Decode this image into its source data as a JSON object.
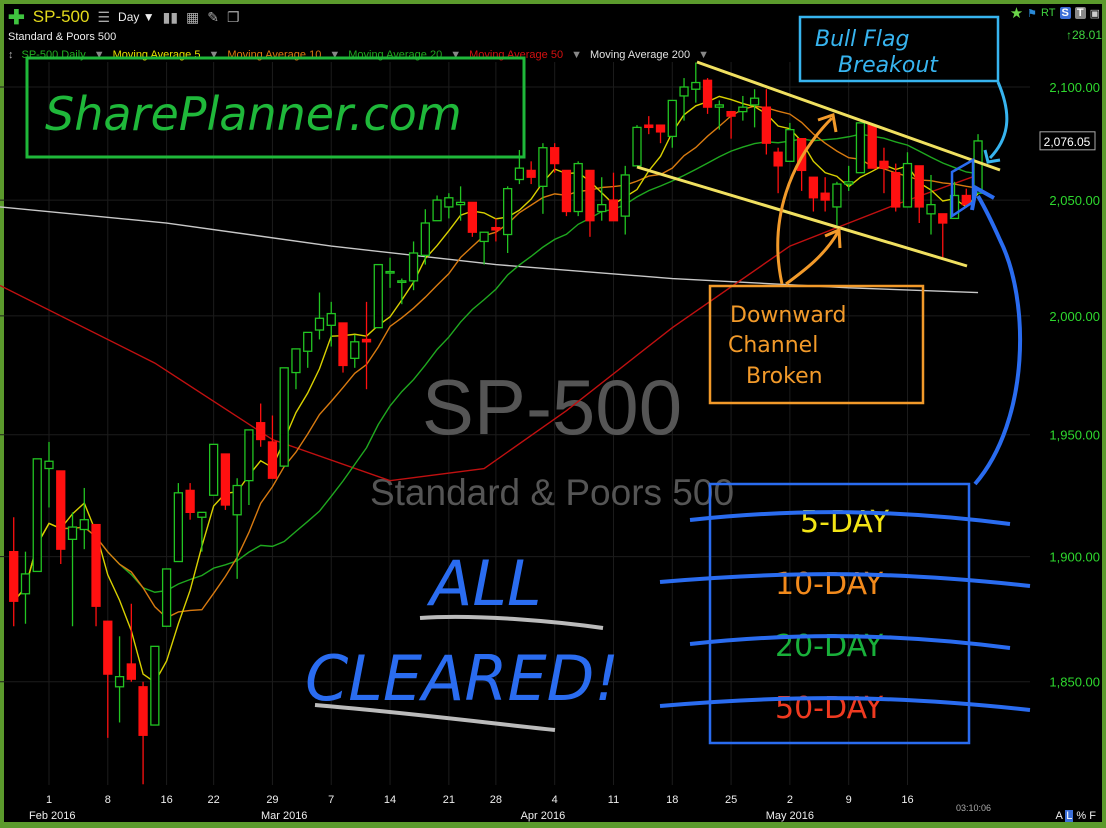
{
  "toolbar": {
    "symbol": "SP-500",
    "interval": "Day",
    "add_icon": "plus-icon",
    "list_icon": "list-icon",
    "dropdown_icon": "caret-down-icon",
    "right": {
      "rt": "RT",
      "s": "S",
      "t": "T"
    },
    "change": "↑28.01"
  },
  "subtitle": "Standard & Poors 500",
  "legend": [
    {
      "label": "SP-500 Daily",
      "color": "#22b022"
    },
    {
      "label": "Moving Average 5",
      "color": "#e8e000"
    },
    {
      "label": "Moving Average 10",
      "color": "#e07a10"
    },
    {
      "label": "Moving Average 20",
      "color": "#1fa81f"
    },
    {
      "label": "Moving Average 50",
      "color": "#d41010"
    },
    {
      "label": "Moving Average 200",
      "color": "#e0e0e0"
    }
  ],
  "watermark": {
    "symbol": "SP-500",
    "name": "Standard & Poors 500"
  },
  "last_price": "2,076.05",
  "timestamp": "03:10:06",
  "scale_modes": [
    "A",
    "L",
    "%",
    "F"
  ],
  "annotations": {
    "logo": "SharePlanner.com",
    "bull_flag": [
      "Bull Flag",
      "Breakout"
    ],
    "channel": [
      "Downward",
      "Channel",
      "Broken"
    ],
    "all_cleared": [
      "ALL",
      "CLEARED!"
    ],
    "ma_list": [
      {
        "text": "5-DAY",
        "color": "#f2e416"
      },
      {
        "text": "10-DAY",
        "color": "#f28a1c"
      },
      {
        "text": "20-DAY",
        "color": "#19b03a"
      },
      {
        "text": "50-DAY",
        "color": "#f03a20"
      }
    ],
    "box_colors": {
      "logo": "#1fb83a",
      "bull_flag": "#37b4ef",
      "channel": "#f29a2a",
      "ma": "#2a6cf0",
      "channel_lines": "#f0e060"
    }
  },
  "chart_data": {
    "type": "candlestick",
    "scale": "log",
    "ylim": [
      1805,
      2125
    ],
    "yticks": [
      2100,
      2050,
      2000,
      1950,
      1900,
      1850
    ],
    "ytick_labels": [
      "2,100.00",
      "2,050.00",
      "2,000.00",
      "1,950.00",
      "1,900.00",
      "1,850.00"
    ],
    "xticks": [
      {
        "date": "2016-02-01",
        "label": "1"
      },
      {
        "date": "2016-02-08",
        "label": "8"
      },
      {
        "date": "2016-02-16",
        "label": "16"
      },
      {
        "date": "2016-02-22",
        "label": "22"
      },
      {
        "date": "2016-02-29",
        "label": "29"
      },
      {
        "date": "2016-03-07",
        "label": "7"
      },
      {
        "date": "2016-03-14",
        "label": "14"
      },
      {
        "date": "2016-03-21",
        "label": "21"
      },
      {
        "date": "2016-03-28",
        "label": "28"
      },
      {
        "date": "2016-04-04",
        "label": "4"
      },
      {
        "date": "2016-04-11",
        "label": "11"
      },
      {
        "date": "2016-04-18",
        "label": "18"
      },
      {
        "date": "2016-04-25",
        "label": "25"
      },
      {
        "date": "2016-05-02",
        "label": "2"
      },
      {
        "date": "2016-05-09",
        "label": "9"
      },
      {
        "date": "2016-05-16",
        "label": "16"
      }
    ],
    "month_labels": [
      {
        "date": "2016-02-01",
        "label": "Feb 2016"
      },
      {
        "date": "2016-03-01",
        "label": "Mar 2016"
      },
      {
        "date": "2016-04-01",
        "label": "Apr 2016"
      },
      {
        "date": "2016-05-02",
        "label": "May 2016"
      }
    ],
    "up_color": "#22c422",
    "down_color": "#ff1010",
    "candles": [
      [
        "2016-01-27",
        1902,
        1916,
        1872,
        1882
      ],
      [
        "2016-01-28",
        1885,
        1902,
        1873,
        1893
      ],
      [
        "2016-01-29",
        1894,
        1940,
        1894,
        1940
      ],
      [
        "2016-02-01",
        1936,
        1947,
        1920,
        1939
      ],
      [
        "2016-02-02",
        1935,
        1935,
        1897,
        1903
      ],
      [
        "2016-02-03",
        1907,
        1918,
        1872,
        1912
      ],
      [
        "2016-02-04",
        1911,
        1928,
        1903,
        1915
      ],
      [
        "2016-02-05",
        1913,
        1913,
        1872,
        1880
      ],
      [
        "2016-02-08",
        1874,
        1874,
        1828,
        1853
      ],
      [
        "2016-02-09",
        1848,
        1868,
        1834,
        1852
      ],
      [
        "2016-02-10",
        1857,
        1881,
        1850,
        1851
      ],
      [
        "2016-02-11",
        1848,
        1850,
        1810,
        1829
      ],
      [
        "2016-02-12",
        1833,
        1864,
        1833,
        1864
      ],
      [
        "2016-02-16",
        1872,
        1895,
        1872,
        1895
      ],
      [
        "2016-02-17",
        1898,
        1930,
        1898,
        1926
      ],
      [
        "2016-02-18",
        1927,
        1930,
        1915,
        1918
      ],
      [
        "2016-02-19",
        1916,
        1918,
        1902,
        1918
      ],
      [
        "2016-02-22",
        1925,
        1946,
        1925,
        1946
      ],
      [
        "2016-02-23",
        1942,
        1942,
        1919,
        1921
      ],
      [
        "2016-02-24",
        1917,
        1932,
        1891,
        1929
      ],
      [
        "2016-02-25",
        1931,
        1952,
        1921,
        1952
      ],
      [
        "2016-02-26",
        1955,
        1963,
        1945,
        1948
      ],
      [
        "2016-02-29",
        1947,
        1958,
        1932,
        1932
      ],
      [
        "2016-03-01",
        1937,
        1978,
        1937,
        1978
      ],
      [
        "2016-03-02",
        1976,
        1986,
        1969,
        1986
      ],
      [
        "2016-03-03",
        1985,
        1993,
        1978,
        1993
      ],
      [
        "2016-03-04",
        1994,
        2010,
        1990,
        1999
      ],
      [
        "2016-03-07",
        1996,
        2006,
        1987,
        2001
      ],
      [
        "2016-03-08",
        1997,
        1997,
        1976,
        1979
      ],
      [
        "2016-03-09",
        1982,
        1992,
        1978,
        1989
      ],
      [
        "2016-03-10",
        1990,
        2006,
        1969,
        1989
      ],
      [
        "2016-03-11",
        1995,
        2022,
        1995,
        2022
      ],
      [
        "2016-03-14",
        2019,
        2025,
        2012,
        2019
      ],
      [
        "2016-03-15",
        2015,
        2016,
        2005,
        2015
      ],
      [
        "2016-03-16",
        2015,
        2032,
        2011,
        2027
      ],
      [
        "2016-03-17",
        2026,
        2046,
        2022,
        2040
      ],
      [
        "2016-03-18",
        2041,
        2052,
        2042,
        2050
      ],
      [
        "2016-03-21",
        2047,
        2053,
        2042,
        2051
      ],
      [
        "2016-03-22",
        2048,
        2056,
        2041,
        2049
      ],
      [
        "2016-03-23",
        2049,
        2049,
        2034,
        2036
      ],
      [
        "2016-03-24",
        2032,
        2036,
        2022,
        2036
      ],
      [
        "2016-03-28",
        2038,
        2042,
        2032,
        2037
      ],
      [
        "2016-03-29",
        2035,
        2056,
        2027,
        2055
      ],
      [
        "2016-03-30",
        2059,
        2072,
        2057,
        2064
      ],
      [
        "2016-03-31",
        2063,
        2067,
        2057,
        2060
      ],
      [
        "2016-04-01",
        2056,
        2075,
        2044,
        2073
      ],
      [
        "2016-04-04",
        2073,
        2075,
        2062,
        2066
      ],
      [
        "2016-04-05",
        2063,
        2063,
        2043,
        2045
      ],
      [
        "2016-04-06",
        2045,
        2067,
        2043,
        2066
      ],
      [
        "2016-04-07",
        2063,
        2063,
        2034,
        2041
      ],
      [
        "2016-04-08",
        2045,
        2060,
        2041,
        2048
      ],
      [
        "2016-04-11",
        2050,
        2062,
        2041,
        2041
      ],
      [
        "2016-04-12",
        2043,
        2065,
        2035,
        2061
      ],
      [
        "2016-04-13",
        2065,
        2083,
        2065,
        2082
      ],
      [
        "2016-04-14",
        2083,
        2087,
        2079,
        2082
      ],
      [
        "2016-04-15",
        2083,
        2083,
        2075,
        2080
      ],
      [
        "2016-04-18",
        2078,
        2094,
        2073,
        2094
      ],
      [
        "2016-04-19",
        2096,
        2104,
        2085,
        2100
      ],
      [
        "2016-04-20",
        2099,
        2111,
        2093,
        2102
      ],
      [
        "2016-04-21",
        2103,
        2104,
        2088,
        2091
      ],
      [
        "2016-04-22",
        2091,
        2094,
        2081,
        2092
      ],
      [
        "2016-04-25",
        2089,
        2089,
        2077,
        2087
      ],
      [
        "2016-04-26",
        2089,
        2096,
        2085,
        2091
      ],
      [
        "2016-04-27",
        2092,
        2099,
        2082,
        2095
      ],
      [
        "2016-04-28",
        2091,
        2099,
        2070,
        2075
      ],
      [
        "2016-04-29",
        2071,
        2073,
        2053,
        2065
      ],
      [
        "2016-05-02",
        2067,
        2084,
        2067,
        2081
      ],
      [
        "2016-05-03",
        2077,
        2077,
        2054,
        2063
      ],
      [
        "2016-05-04",
        2060,
        2060,
        2045,
        2051
      ],
      [
        "2016-05-05",
        2053,
        2060,
        2045,
        2050
      ],
      [
        "2016-05-06",
        2047,
        2058,
        2039,
        2057
      ],
      [
        "2016-05-09",
        2057,
        2065,
        2054,
        2058
      ],
      [
        "2016-05-10",
        2062,
        2084,
        2062,
        2084
      ],
      [
        "2016-05-11",
        2083,
        2083,
        2064,
        2064
      ],
      [
        "2016-05-12",
        2067,
        2073,
        2053,
        2064
      ],
      [
        "2016-05-13",
        2062,
        2066,
        2045,
        2047
      ],
      [
        "2016-05-16",
        2047,
        2071,
        2047,
        2066
      ],
      [
        "2016-05-17",
        2065,
        2065,
        2040,
        2047
      ],
      [
        "2016-05-18",
        2044,
        2061,
        2035,
        2048
      ],
      [
        "2016-05-19",
        2044,
        2044,
        2025,
        2040
      ],
      [
        "2016-05-20",
        2042,
        2058,
        2042,
        2052
      ],
      [
        "2016-05-23",
        2052,
        2055,
        2047,
        2048
      ],
      [
        "2016-05-24",
        2053,
        2079,
        2053,
        2076
      ]
    ],
    "ma50": [
      [
        "2016-01-27",
        2013
      ],
      [
        "2016-02-12",
        1980
      ],
      [
        "2016-02-29",
        1948
      ],
      [
        "2016-03-14",
        1931
      ],
      [
        "2016-03-24",
        1936
      ],
      [
        "2016-04-05",
        1960
      ],
      [
        "2016-04-18",
        1995
      ],
      [
        "2016-05-02",
        2030
      ],
      [
        "2016-05-13",
        2048
      ],
      [
        "2016-05-24",
        2061
      ]
    ],
    "ma200": [
      [
        "2016-01-27",
        2047
      ],
      [
        "2016-02-16",
        2040
      ],
      [
        "2016-03-07",
        2030
      ],
      [
        "2016-03-28",
        2022
      ],
      [
        "2016-04-18",
        2016
      ],
      [
        "2016-05-09",
        2012
      ],
      [
        "2016-05-24",
        2010
      ]
    ]
  }
}
